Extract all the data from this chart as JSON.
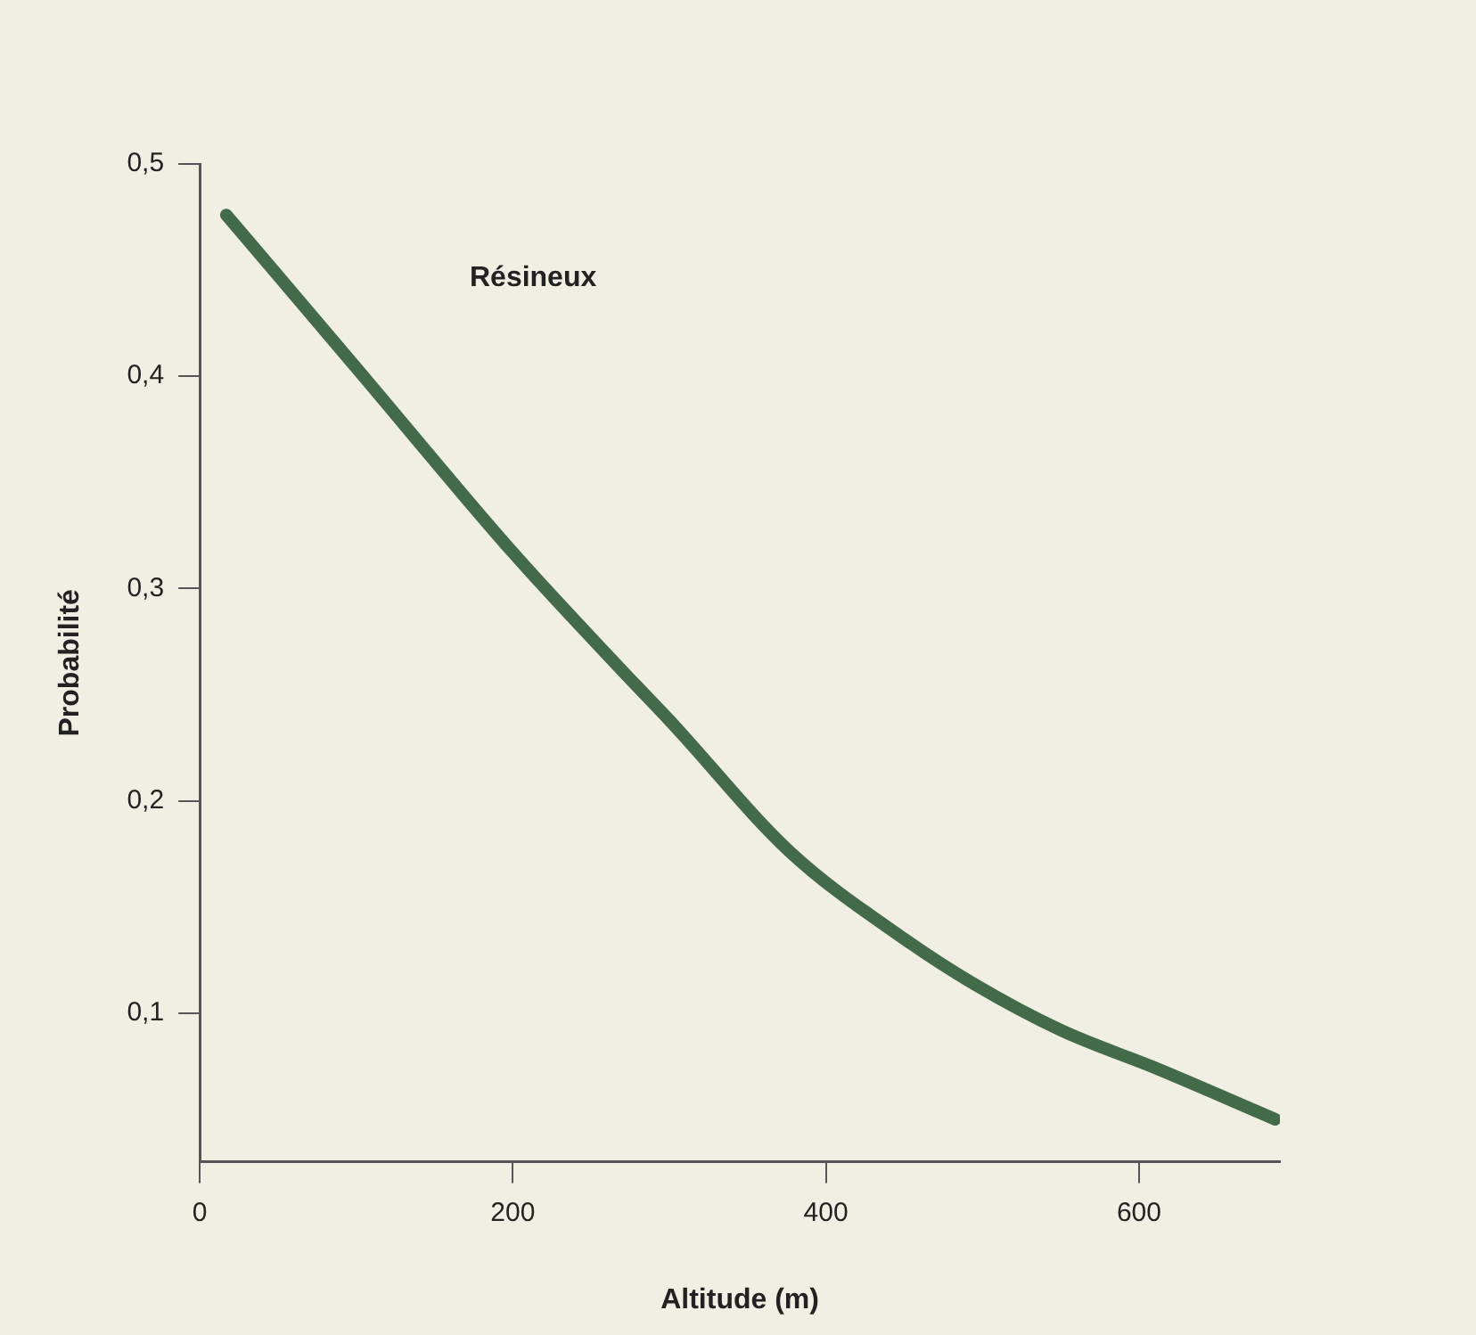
{
  "chart_data": {
    "type": "line",
    "xlabel": "Altitude (m)",
    "ylabel": "Probabilité",
    "annotations": [
      "Résineux"
    ],
    "series": [
      {
        "color": "#436b4a",
        "x": [
          17,
          100,
          200,
          269,
          300,
          377,
          450,
          494,
          550,
          611,
          687
        ],
        "values": [
          0.476,
          0.404,
          0.317,
          0.262,
          0.238,
          0.176,
          0.135,
          0.114,
          0.092,
          0.074,
          0.05
        ]
      }
    ],
    "xlim": [
      0,
      690
    ],
    "xticks": [
      0,
      200,
      400,
      600
    ],
    "ylim": [
      0.03,
      0.5
    ],
    "yticks": [
      {
        "value": 0.1,
        "label": "0,1"
      },
      {
        "value": 0.2,
        "label": "0,2"
      },
      {
        "value": 0.3,
        "label": "0,3"
      },
      {
        "value": 0.4,
        "label": "0,4"
      },
      {
        "value": 0.5,
        "label": "0,5"
      }
    ],
    "grid": false,
    "legend": false,
    "marker": "none",
    "line_style": "solid"
  }
}
